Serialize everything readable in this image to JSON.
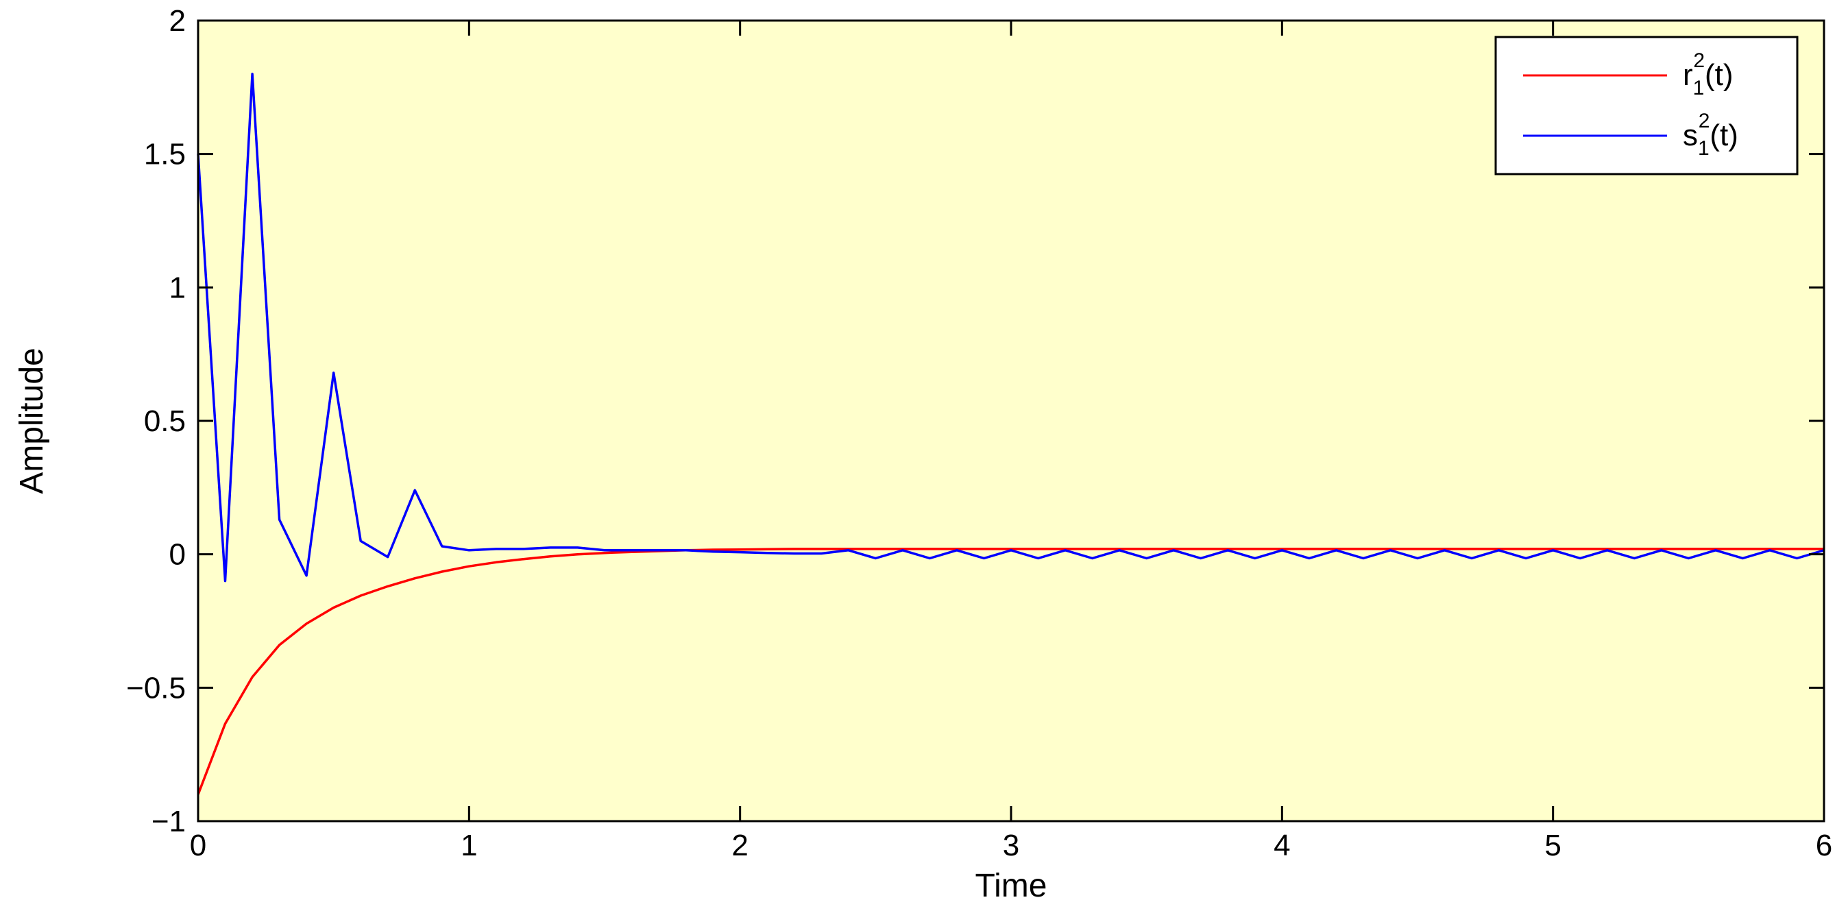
{
  "chart_data": {
    "type": "line",
    "xlabel": "Time",
    "ylabel": "Amplitude",
    "xlim": [
      0,
      6
    ],
    "ylim": [
      -1,
      2
    ],
    "xticks": [
      "0",
      "1",
      "2",
      "3",
      "4",
      "5",
      "6"
    ],
    "yticks": [
      "−1",
      "−0.5",
      "0",
      "0.5",
      "1",
      "1.5",
      "2"
    ],
    "grid": false,
    "legend_position": "top-right",
    "background_color": "#ffffcc",
    "series": [
      {
        "name": "r",
        "legend": {
          "base": "r",
          "sup": "2",
          "sub": "1",
          "arg": "(t)"
        },
        "color": "#ff0000",
        "x": [
          0.0,
          0.1,
          0.2,
          0.3,
          0.4,
          0.5,
          0.6,
          0.7,
          0.8,
          0.9,
          1.0,
          1.1,
          1.2,
          1.3,
          1.4,
          1.5,
          1.6,
          1.7,
          1.8,
          1.9,
          2.0,
          2.1,
          2.2,
          2.3,
          2.4,
          2.5,
          2.6,
          2.7,
          2.8,
          2.9,
          3.0,
          3.5,
          4.0,
          4.5,
          5.0,
          5.5,
          6.0
        ],
        "values": [
          -0.9,
          -0.635,
          -0.46,
          -0.34,
          -0.26,
          -0.2,
          -0.155,
          -0.12,
          -0.09,
          -0.065,
          -0.045,
          -0.03,
          -0.018,
          -0.008,
          0.0,
          0.005,
          0.009,
          0.012,
          0.015,
          0.017,
          0.018,
          0.019,
          0.02,
          0.02,
          0.02,
          0.02,
          0.02,
          0.02,
          0.02,
          0.02,
          0.02,
          0.02,
          0.02,
          0.02,
          0.02,
          0.02,
          0.02
        ]
      },
      {
        "name": "s",
        "legend": {
          "base": "s",
          "sup": "2",
          "sub": "1",
          "arg": "(t)"
        },
        "color": "#0000ff",
        "x": [
          0.0,
          0.1,
          0.2,
          0.3,
          0.4,
          0.5,
          0.6,
          0.7,
          0.8,
          0.9,
          1.0,
          1.1,
          1.2,
          1.3,
          1.4,
          1.5,
          1.6,
          1.7,
          1.8,
          1.9,
          2.0,
          2.1,
          2.2,
          2.3,
          2.4,
          2.5,
          2.6,
          2.7,
          2.8,
          2.9,
          3.0,
          3.1,
          3.2,
          3.3,
          3.4,
          3.5,
          3.6,
          3.7,
          3.8,
          3.9,
          4.0,
          4.1,
          4.2,
          4.3,
          4.4,
          4.5,
          4.6,
          4.7,
          4.8,
          4.9,
          5.0,
          5.1,
          5.2,
          5.3,
          5.4,
          5.5,
          5.6,
          5.7,
          5.8,
          5.9,
          6.0
        ],
        "values": [
          1.5,
          -0.1,
          1.8,
          0.13,
          -0.08,
          0.68,
          0.05,
          -0.01,
          0.24,
          0.03,
          0.015,
          0.02,
          0.02,
          0.025,
          0.025,
          0.015,
          0.015,
          0.015,
          0.015,
          0.01,
          0.008,
          0.005,
          0.003,
          0.003,
          0.015,
          -0.015,
          0.015,
          -0.015,
          0.015,
          -0.015,
          0.015,
          -0.015,
          0.015,
          -0.015,
          0.015,
          -0.015,
          0.015,
          -0.015,
          0.015,
          -0.015,
          0.015,
          -0.015,
          0.015,
          -0.015,
          0.015,
          -0.015,
          0.015,
          -0.015,
          0.015,
          -0.015,
          0.015,
          -0.015,
          0.015,
          -0.015,
          0.015,
          -0.015,
          0.015,
          -0.015,
          0.015,
          -0.015,
          0.015
        ]
      }
    ]
  }
}
